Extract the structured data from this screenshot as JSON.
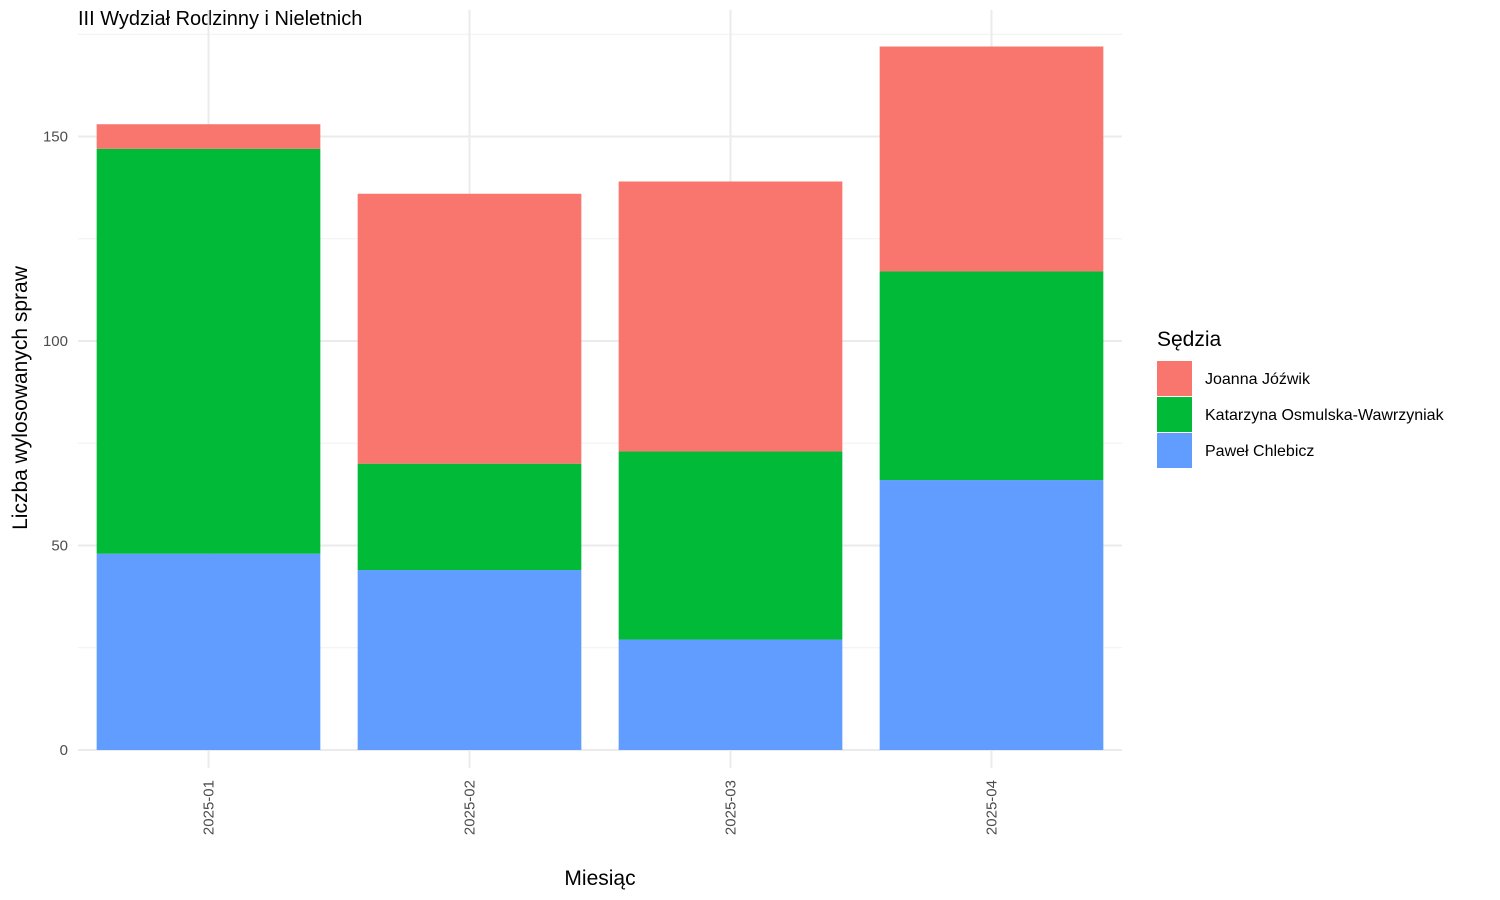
{
  "chart_data": {
    "type": "bar",
    "stacked": true,
    "title": "III Wydział Rodzinny i Nieletnich",
    "xlabel": "Miesiąc",
    "ylabel": "Liczba wylosowanych spraw",
    "categories": [
      "2025-01",
      "2025-02",
      "2025-03",
      "2025-04"
    ],
    "ylim": [
      0,
      177
    ],
    "yticks": [
      0,
      50,
      100,
      150
    ],
    "grid": true,
    "legend": {
      "title": "Sędzia",
      "position": "right"
    },
    "series": [
      {
        "name": "Paweł Chlebicz",
        "color": "#619CFF",
        "values": [
          48,
          44,
          27,
          66
        ]
      },
      {
        "name": "Katarzyna Osmulska-Wawrzyniak",
        "color": "#00BA38",
        "values": [
          99,
          26,
          46,
          51
        ]
      },
      {
        "name": "Joanna Jóźwik",
        "color": "#F8766D",
        "values": [
          6,
          66,
          66,
          55
        ]
      }
    ],
    "legend_order": [
      "Joanna Jóźwik",
      "Katarzyna Osmulska-Wawrzyniak",
      "Paweł Chlebicz"
    ]
  }
}
